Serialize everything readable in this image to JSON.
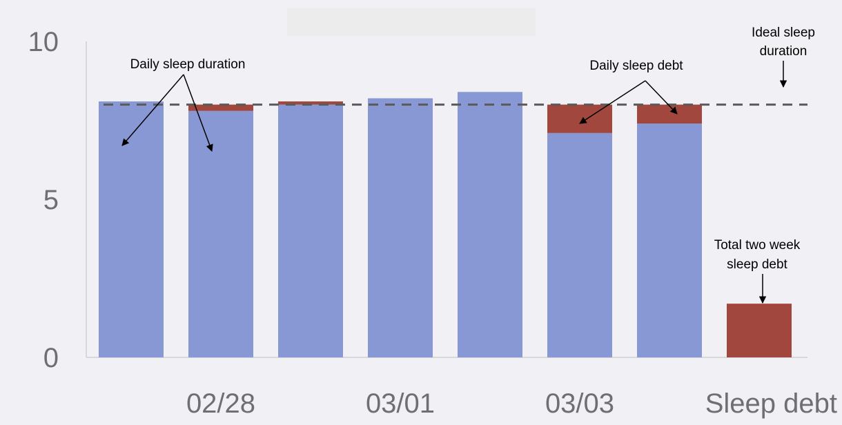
{
  "chart_data": {
    "type": "bar",
    "stacked": true,
    "categories": [
      "",
      "02/28",
      "",
      "03/01",
      "",
      "03/03",
      "",
      "Sleep debt"
    ],
    "series": [
      {
        "values": [
          8.1,
          7.8,
          8.0,
          8.2,
          8.4,
          7.1,
          7.4,
          0
        ],
        "color": "#8898d4"
      },
      {
        "values": [
          0,
          0.2,
          0.1,
          0,
          0,
          0.9,
          0.6,
          1.7
        ],
        "color": "#a1473d"
      }
    ],
    "ideal_line": 8,
    "ylim": [
      0,
      10
    ],
    "yticks": [
      0,
      5,
      10
    ],
    "grid": false,
    "annotations": {
      "daily_duration": "Daily sleep duration",
      "daily_debt": "Daily sleep debt",
      "ideal_line1": "Ideal sleep",
      "ideal_line2": "duration",
      "total_line1": "Total two week",
      "total_line2": "sleep debt"
    }
  }
}
